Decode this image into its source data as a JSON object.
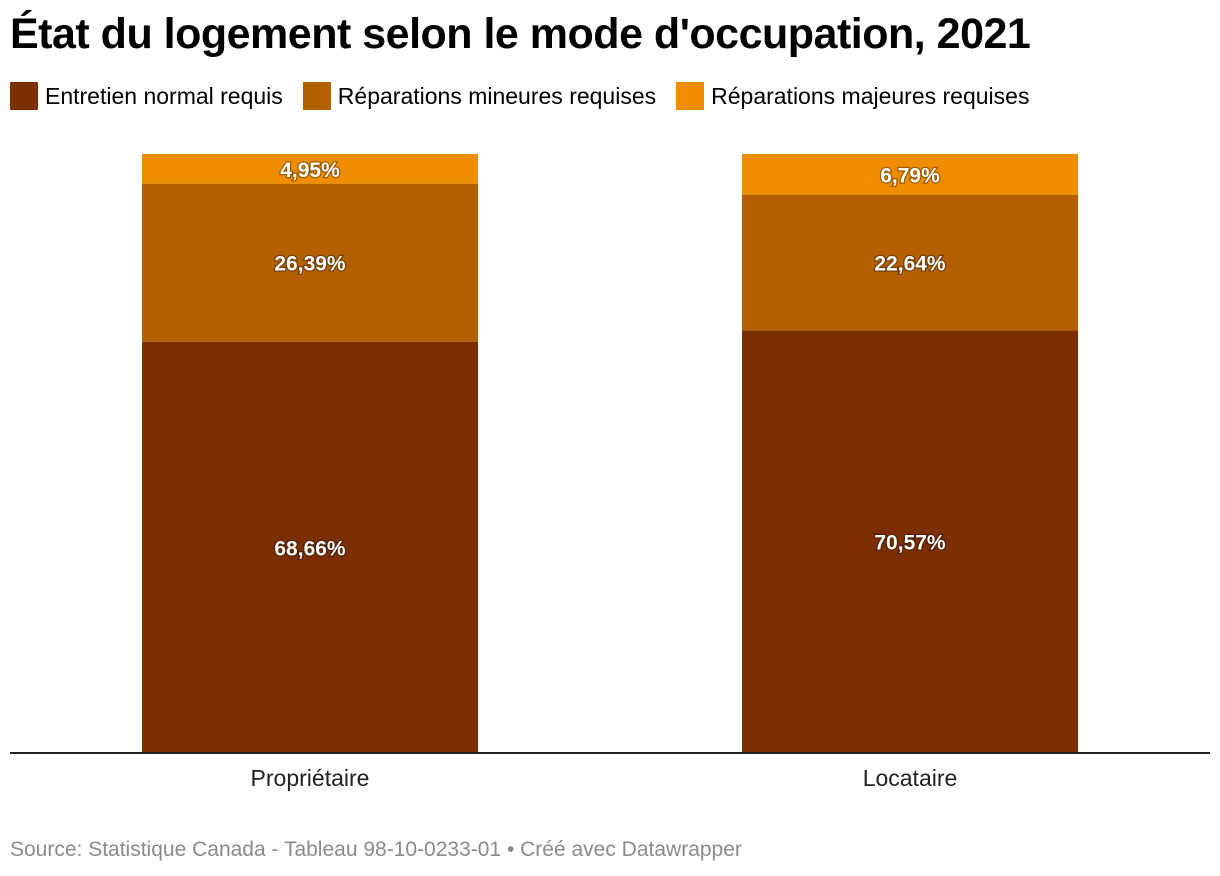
{
  "chart_data": {
    "type": "bar",
    "stacked": true,
    "normalized_percent": true,
    "title": "État du logement selon le mode d'occupation, 2021",
    "categories": [
      "Propriétaire",
      "Locataire"
    ],
    "series": [
      {
        "name": "Entretien normal requis",
        "color": "#7b2f00",
        "values": [
          68.66,
          70.57
        ],
        "labels": [
          "68,66%",
          "70,57%"
        ]
      },
      {
        "name": "Réparations mineures requises",
        "color": "#b45f00",
        "values": [
          26.39,
          22.64
        ],
        "labels": [
          "26,39%",
          "22,64%"
        ]
      },
      {
        "name": "Réparations majeures requises",
        "color": "#f08c00",
        "values": [
          4.95,
          6.79
        ],
        "labels": [
          "4,95%",
          "6,79%"
        ]
      }
    ],
    "ylim": [
      0,
      100
    ],
    "grid": false,
    "legend_position": "top-left"
  },
  "footer": {
    "source": "Source: Statistique Canada - Tableau 98-10-0233-01 • Créé avec Datawrapper"
  }
}
